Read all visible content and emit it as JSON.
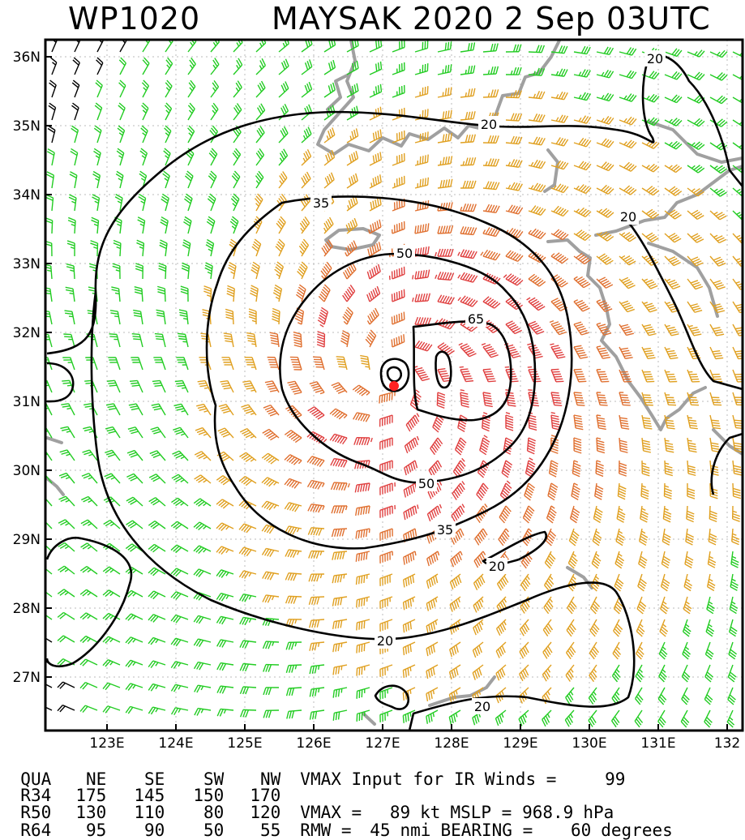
{
  "header": {
    "storm_id": "WP1020",
    "storm_name_year": "MAYSAK 2020",
    "datetime": "2 Sep 03UTC"
  },
  "map": {
    "lat_labels": [
      "36N",
      "35N",
      "34N",
      "33N",
      "32N",
      "31N",
      "30N",
      "29N",
      "28N",
      "27N"
    ],
    "lon_labels": [
      "123E",
      "124E",
      "125E",
      "126E",
      "127E",
      "128E",
      "129E",
      "130E",
      "131E",
      "132"
    ],
    "contour_labels": [
      "20",
      "20",
      "20",
      "35",
      "50",
      "65",
      "50",
      "35",
      "20",
      "20",
      "20"
    ],
    "wind_colors": {
      "lt20": "#000000",
      "20to35": "#22cc22",
      "35to50": "#e0a020",
      "50to65": "#e07030",
      "gt65": "#e04040"
    },
    "storm_center_color": "#ff2222",
    "coast_color": "#a0a0a0"
  },
  "table": {
    "header_row": [
      "QUA",
      "NE",
      "SE",
      "SW",
      "NW"
    ],
    "rows": [
      {
        "label": "R34",
        "values": [
          "175",
          "145",
          "150",
          "170"
        ]
      },
      {
        "label": "R50",
        "values": [
          "130",
          "110",
          "80",
          "120"
        ]
      },
      {
        "label": "R64",
        "values": [
          "95",
          "90",
          "50",
          "55"
        ]
      }
    ],
    "vmax_input_label": "VMAX Input for IR Winds =",
    "vmax_input_value": "99",
    "vmax_label": "VMAX =",
    "vmax_value": "89",
    "vmax_unit": "kt",
    "mslp_label": "MSLP =",
    "mslp_value": "968.9",
    "mslp_unit": "hPa",
    "rmw_label": "RMW =",
    "rmw_value": "45",
    "rmw_unit": "nmi",
    "bearing_label": "BEARING =",
    "bearing_value": "60",
    "bearing_unit": "degrees"
  }
}
